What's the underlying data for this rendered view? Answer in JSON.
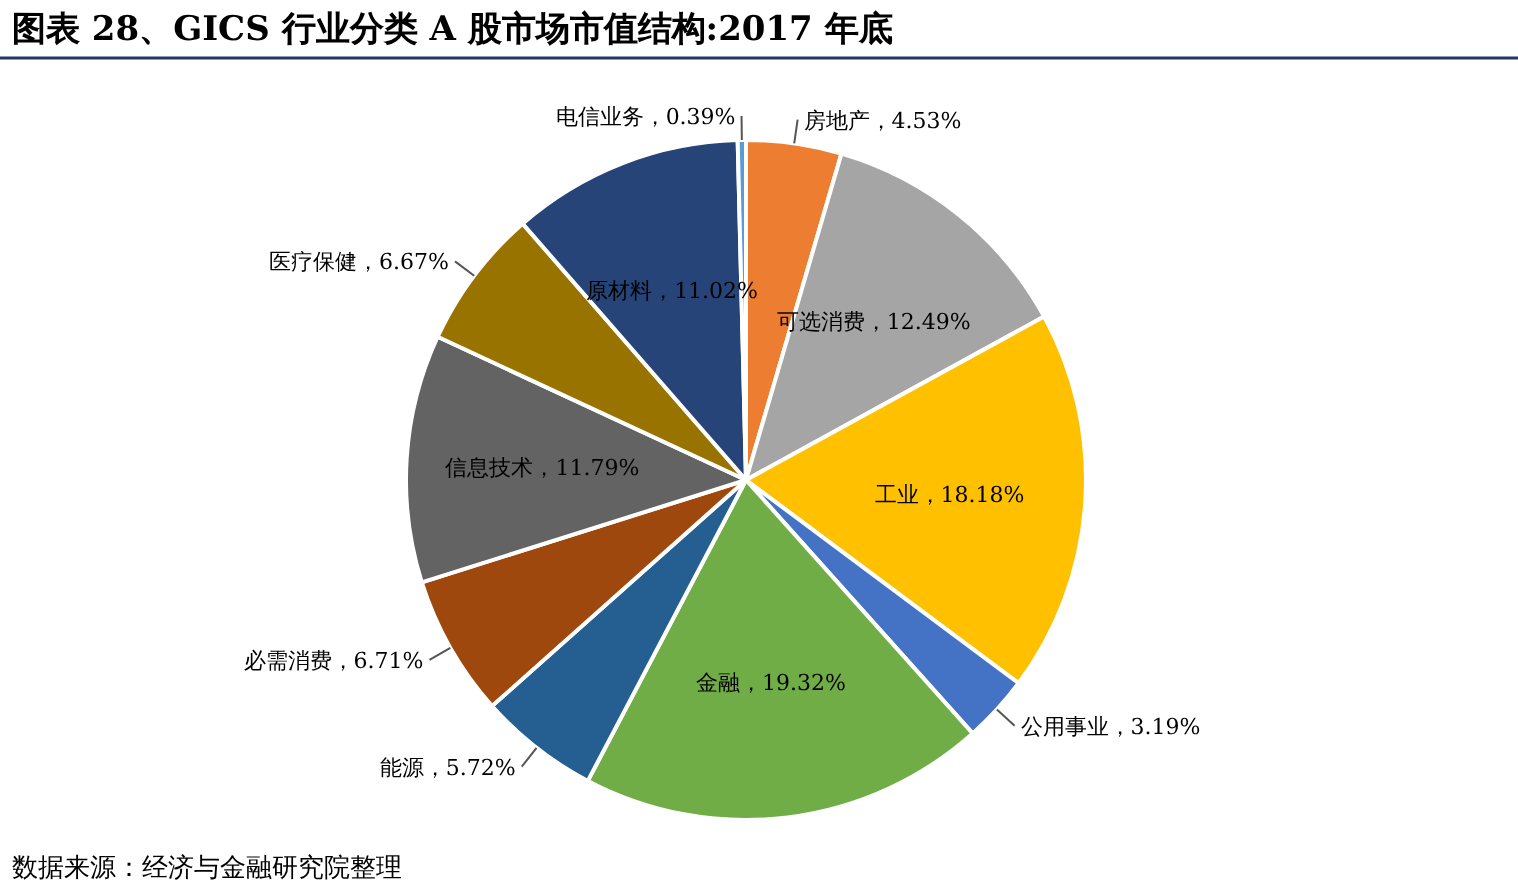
{
  "chart_data": {
    "type": "pie",
    "title": "图表 28、GICS 行业分类 A 股市场市值结构:2017 年底",
    "categories": [
      "房地产",
      "可选消费",
      "工业",
      "公用事业",
      "金融",
      "能源",
      "必需消费",
      "信息技术",
      "医疗保健",
      "原材料",
      "电信业务"
    ],
    "values": [
      4.53,
      12.49,
      18.18,
      3.19,
      19.32,
      5.72,
      6.71,
      11.79,
      6.67,
      11.02,
      0.39
    ],
    "value_labels": [
      "4.53%",
      "12.49%",
      "18.18%",
      "3.19%",
      "19.32%",
      "5.72%",
      "6.71%",
      "11.79%",
      "6.67%",
      "11.02%",
      "0.39%"
    ],
    "colors": [
      "#ed7d31",
      "#a5a5a5",
      "#ffc000",
      "#4472c4",
      "#70ad47",
      "#255e91",
      "#9e480e",
      "#636363",
      "#997300",
      "#264478",
      "#5b9bd5"
    ],
    "annotations": [
      "数据来源：经济与金融研究院整理"
    ]
  }
}
